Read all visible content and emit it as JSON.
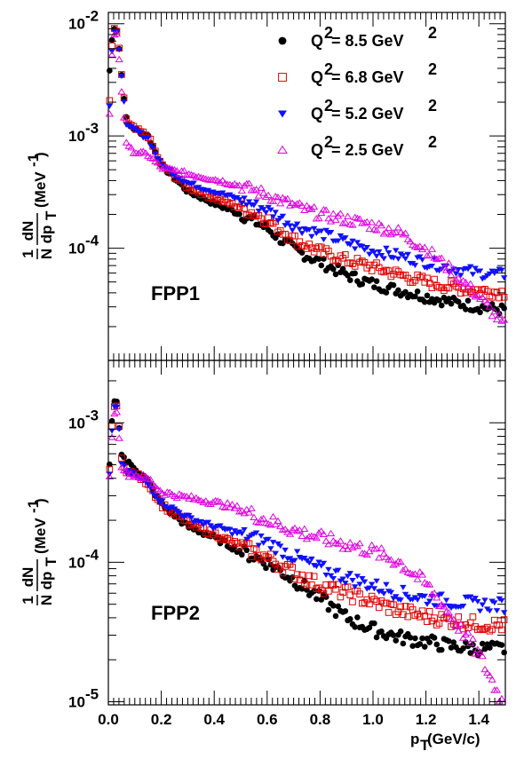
{
  "chart_data": [
    {
      "type": "scatter",
      "panel_label": "FPP1",
      "ylabel": {
        "frac_num": "1",
        "frac_den": "N",
        "frac2_num": "dN",
        "frac2_den": "dp",
        "frac2_den_sub": "T",
        "unit": "(MeV",
        "unit_sup": "-1",
        "unit_end": ")"
      },
      "xlim": [
        0,
        1.5
      ],
      "ylim": [
        1e-05,
        0.0126
      ],
      "y_scale": "log",
      "yticks": [
        {
          "value": 0.0001,
          "base": "10",
          "exp": "-4"
        },
        {
          "value": 0.001,
          "base": "10",
          "exp": "-3"
        },
        {
          "value": 0.01,
          "base": "10",
          "exp": "-2"
        }
      ],
      "legend": {
        "placement": "top-right",
        "entries": [
          {
            "q": "Q",
            "q_sup": "2",
            "eq": " = 8.5 GeV",
            "unit_sup": "2"
          },
          {
            "q": "Q",
            "q_sup": "2",
            "eq": " = 6.8 GeV",
            "unit_sup": "2"
          },
          {
            "q": "Q",
            "q_sup": "2",
            "eq": " = 5.2 GeV",
            "unit_sup": "2"
          },
          {
            "q": "Q",
            "q_sup": "2",
            "eq": " = 2.5 GeV",
            "unit_sup": "2"
          }
        ]
      },
      "series": [
        {
          "marker": "circle",
          "color": "#000000",
          "points": [
            [
              0.0,
              0.0028
            ],
            [
              0.015,
              0.0078
            ],
            [
              0.025,
              0.0098
            ],
            [
              0.035,
              0.0085
            ],
            [
              0.05,
              0.0035
            ],
            [
              0.07,
              0.0013
            ],
            [
              0.1,
              0.00115
            ],
            [
              0.15,
              0.001
            ],
            [
              0.2,
              0.00055
            ],
            [
              0.3,
              0.00032
            ],
            [
              0.4,
              0.00025
            ],
            [
              0.5,
              0.0002
            ],
            [
              0.6,
              0.00015
            ],
            [
              0.7,
              9.8e-05
            ],
            [
              0.8,
              7.5e-05
            ],
            [
              0.9,
              5.8e-05
            ],
            [
              1.0,
              4.8e-05
            ],
            [
              1.1,
              4.2e-05
            ],
            [
              1.2,
              3.7e-05
            ],
            [
              1.3,
              3.3e-05
            ],
            [
              1.4,
              3e-05
            ],
            [
              1.5,
              2.8e-05
            ]
          ]
        },
        {
          "marker": "square-open",
          "color": "#e00000",
          "points": [
            [
              0.0,
              0.0012
            ],
            [
              0.015,
              0.0072
            ],
            [
              0.025,
              0.0095
            ],
            [
              0.035,
              0.0082
            ],
            [
              0.05,
              0.0034
            ],
            [
              0.07,
              0.0013
            ],
            [
              0.1,
              0.00115
            ],
            [
              0.15,
              0.001
            ],
            [
              0.2,
              0.00055
            ],
            [
              0.3,
              0.00035
            ],
            [
              0.4,
              0.00028
            ],
            [
              0.5,
              0.00023
            ],
            [
              0.6,
              0.00018
            ],
            [
              0.7,
              0.00012
            ],
            [
              0.8,
              9.3e-05
            ],
            [
              0.9,
              7.8e-05
            ],
            [
              1.0,
              6.8e-05
            ],
            [
              1.1,
              5.8e-05
            ],
            [
              1.2,
              5e-05
            ],
            [
              1.3,
              4.5e-05
            ],
            [
              1.4,
              4.2e-05
            ],
            [
              1.5,
              4e-05
            ]
          ]
        },
        {
          "marker": "triangle-down",
          "color": "#1010ff",
          "points": [
            [
              0.0,
              0.0011
            ],
            [
              0.015,
              0.0068
            ],
            [
              0.025,
              0.0092
            ],
            [
              0.035,
              0.008
            ],
            [
              0.05,
              0.0033
            ],
            [
              0.07,
              0.0012
            ],
            [
              0.1,
              0.00112
            ],
            [
              0.15,
              0.00095
            ],
            [
              0.2,
              0.00055
            ],
            [
              0.3,
              0.00038
            ],
            [
              0.4,
              0.00032
            ],
            [
              0.5,
              0.00027
            ],
            [
              0.6,
              0.00022
            ],
            [
              0.7,
              0.00016
            ],
            [
              0.8,
              0.000135
            ],
            [
              0.9,
              0.000113
            ],
            [
              1.0,
              9.5e-05
            ],
            [
              1.1,
              8.5e-05
            ],
            [
              1.2,
              7.5e-05
            ],
            [
              1.3,
              6.6e-05
            ],
            [
              1.4,
              6e-05
            ],
            [
              1.5,
              5.8e-05
            ]
          ]
        },
        {
          "marker": "triangle-open",
          "color": "#e000e0",
          "points": [
            [
              0.0,
              0.0009
            ],
            [
              0.015,
              0.0062
            ],
            [
              0.025,
              0.0088
            ],
            [
              0.035,
              0.0075
            ],
            [
              0.05,
              0.0025
            ],
            [
              0.07,
              0.0008
            ],
            [
              0.1,
              0.00072
            ],
            [
              0.15,
              0.00068
            ],
            [
              0.2,
              0.00052
            ],
            [
              0.3,
              0.00046
            ],
            [
              0.4,
              0.00041
            ],
            [
              0.5,
              0.00036
            ],
            [
              0.6,
              0.0003
            ],
            [
              0.7,
              0.00024
            ],
            [
              0.8,
              0.0002
            ],
            [
              0.9,
              0.00018
            ],
            [
              1.0,
              0.00016
            ],
            [
              1.1,
              0.000138
            ],
            [
              1.2,
              9.8e-05
            ],
            [
              1.3,
              6.2e-05
            ],
            [
              1.4,
              3.7e-05
            ],
            [
              1.5,
              2e-05
            ]
          ]
        }
      ]
    },
    {
      "type": "scatter",
      "panel_label": "FPP2",
      "ylabel": {
        "frac_num": "1",
        "frac_den": "N",
        "frac2_num": "dN",
        "frac2_den": "dp",
        "frac2_den_sub": "T",
        "unit": "(MeV",
        "unit_sup": "-1",
        "unit_end": ")"
      },
      "xlim": [
        0,
        1.5
      ],
      "ylim": [
        9.5e-06,
        0.0028
      ],
      "y_scale": "log",
      "yticks": [
        {
          "value": 1e-05,
          "base": "10",
          "exp": "-5"
        },
        {
          "value": 0.0001,
          "base": "10",
          "exp": "-4"
        },
        {
          "value": 0.001,
          "base": "10",
          "exp": "-3"
        }
      ],
      "series": [
        {
          "marker": "circle",
          "color": "#000000",
          "points": [
            [
              0.0,
              0.00035
            ],
            [
              0.015,
              0.0011
            ],
            [
              0.025,
              0.0016
            ],
            [
              0.035,
              0.0013
            ],
            [
              0.05,
              0.0006
            ],
            [
              0.07,
              0.00052
            ],
            [
              0.1,
              0.00048
            ],
            [
              0.15,
              0.00038
            ],
            [
              0.2,
              0.00026
            ],
            [
              0.3,
              0.00018
            ],
            [
              0.4,
              0.00015
            ],
            [
              0.5,
              0.00012
            ],
            [
              0.6,
              0.0001
            ],
            [
              0.7,
              7.5e-05
            ],
            [
              0.8,
              5.5e-05
            ],
            [
              0.9,
              4e-05
            ],
            [
              1.0,
              3.3e-05
            ],
            [
              1.1,
              2.9e-05
            ],
            [
              1.2,
              2.7e-05
            ],
            [
              1.3,
              2.5e-05
            ],
            [
              1.4,
              2.4e-05
            ],
            [
              1.5,
              2.4e-05
            ]
          ]
        },
        {
          "marker": "square-open",
          "color": "#e00000",
          "points": [
            [
              0.0,
              0.00033
            ],
            [
              0.015,
              0.001
            ],
            [
              0.025,
              0.0015
            ],
            [
              0.035,
              0.00125
            ],
            [
              0.05,
              0.00055
            ],
            [
              0.07,
              0.00045
            ],
            [
              0.1,
              0.00043
            ],
            [
              0.15,
              0.00037
            ],
            [
              0.2,
              0.00026
            ],
            [
              0.3,
              0.00019
            ],
            [
              0.4,
              0.00016
            ],
            [
              0.5,
              0.00013
            ],
            [
              0.6,
              0.000108
            ],
            [
              0.7,
              8.5e-05
            ],
            [
              0.8,
              6.8e-05
            ],
            [
              0.9,
              6e-05
            ],
            [
              1.0,
              5.2e-05
            ],
            [
              1.1,
              4.5e-05
            ],
            [
              1.2,
              4.1e-05
            ],
            [
              1.3,
              3.8e-05
            ],
            [
              1.4,
              3.6e-05
            ],
            [
              1.5,
              3.5e-05
            ]
          ]
        },
        {
          "marker": "triangle-down",
          "color": "#1010ff",
          "points": [
            [
              0.0,
              0.0003
            ],
            [
              0.015,
              0.00095
            ],
            [
              0.025,
              0.0014
            ],
            [
              0.035,
              0.0012
            ],
            [
              0.05,
              0.00052
            ],
            [
              0.07,
              0.00044
            ],
            [
              0.1,
              0.00042
            ],
            [
              0.15,
              0.00036
            ],
            [
              0.2,
              0.00027
            ],
            [
              0.3,
              0.00021
            ],
            [
              0.4,
              0.00018
            ],
            [
              0.5,
              0.00016
            ],
            [
              0.6,
              0.00014
            ],
            [
              0.7,
              0.00011
            ],
            [
              0.8,
              9e-05
            ],
            [
              0.9,
              7.8e-05
            ],
            [
              1.0,
              6.8e-05
            ],
            [
              1.1,
              6e-05
            ],
            [
              1.2,
              5.5e-05
            ],
            [
              1.3,
              5.2e-05
            ],
            [
              1.4,
              5e-05
            ],
            [
              1.5,
              4.9e-05
            ]
          ]
        },
        {
          "marker": "triangle-open",
          "color": "#e000e0",
          "points": [
            [
              0.0,
              0.00028
            ],
            [
              0.015,
              0.0009
            ],
            [
              0.025,
              0.0013
            ],
            [
              0.035,
              0.0011
            ],
            [
              0.05,
              0.0005
            ],
            [
              0.07,
              0.00043
            ],
            [
              0.1,
              0.00042
            ],
            [
              0.15,
              0.0004
            ],
            [
              0.2,
              0.00032
            ],
            [
              0.3,
              0.00029
            ],
            [
              0.4,
              0.00027
            ],
            [
              0.5,
              0.00024
            ],
            [
              0.6,
              0.0002
            ],
            [
              0.7,
              0.00017
            ],
            [
              0.8,
              0.00015
            ],
            [
              0.9,
              0.000135
            ],
            [
              1.0,
              0.00012
            ],
            [
              1.1,
              0.0001
            ],
            [
              1.2,
              7e-05
            ],
            [
              1.3,
              4e-05
            ],
            [
              1.4,
              2.2e-05
            ],
            [
              1.5,
              9e-06
            ]
          ]
        }
      ]
    }
  ],
  "shared_x_axis": {
    "tick_labels": [
      "0.0",
      "0.2",
      "0.4",
      "0.6",
      "0.8",
      "1.0",
      "1.2",
      "1.4"
    ],
    "xlabel": {
      "p": "p",
      "sub": "T",
      "unit": " (GeV/c)"
    }
  }
}
